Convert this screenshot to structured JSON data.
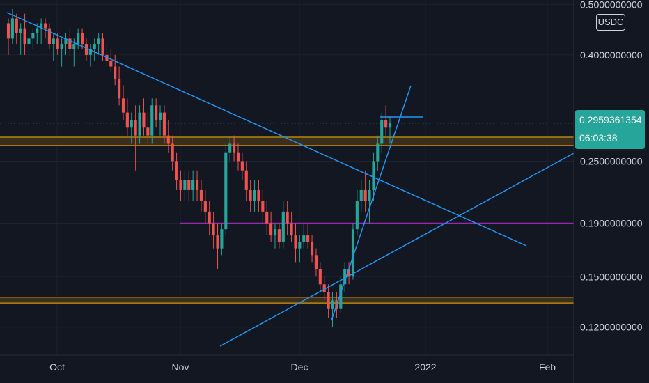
{
  "chart_data": {
    "type": "candlestick",
    "y_scale": "log",
    "ylim": [
      0.106,
      0.51
    ],
    "y_ticks": [
      "0.5000000000",
      "0.4000000000",
      "0.2500000000",
      "0.1900000000",
      "0.1500000000",
      "0.1200000000"
    ],
    "x_ticks": [
      "Oct",
      "Nov",
      "Dec",
      "2022",
      "Feb"
    ],
    "last_price": "0.2959361354",
    "countdown": "06:03:38",
    "currency": "USDC",
    "colors": {
      "background": "#131722",
      "up": "#26a69a",
      "down": "#ef5350",
      "trendline": "#2196f3",
      "zone_line": "#b8860b",
      "zone_fill": "#3a2f1e",
      "purple_line": "#9c27b0",
      "grid": "#1e222d",
      "text": "#d1d4dc",
      "dotted": "#26a69a"
    },
    "candles": [
      [
        0.46,
        0.47,
        0.4,
        0.43
      ],
      [
        0.43,
        0.49,
        0.42,
        0.47
      ],
      [
        0.47,
        0.48,
        0.42,
        0.44
      ],
      [
        0.44,
        0.46,
        0.4,
        0.45
      ],
      [
        0.45,
        0.48,
        0.4,
        0.42
      ],
      [
        0.42,
        0.44,
        0.39,
        0.43
      ],
      [
        0.43,
        0.45,
        0.41,
        0.44
      ],
      [
        0.44,
        0.46,
        0.42,
        0.45
      ],
      [
        0.45,
        0.47,
        0.42,
        0.46
      ],
      [
        0.46,
        0.47,
        0.43,
        0.45
      ],
      [
        0.45,
        0.46,
        0.41,
        0.42
      ],
      [
        0.42,
        0.44,
        0.39,
        0.43
      ],
      [
        0.43,
        0.44,
        0.4,
        0.41
      ],
      [
        0.41,
        0.43,
        0.38,
        0.42
      ],
      [
        0.42,
        0.44,
        0.4,
        0.43
      ],
      [
        0.43,
        0.45,
        0.4,
        0.41
      ],
      [
        0.41,
        0.43,
        0.38,
        0.42
      ],
      [
        0.42,
        0.45,
        0.41,
        0.44
      ],
      [
        0.44,
        0.45,
        0.41,
        0.42
      ],
      [
        0.42,
        0.43,
        0.39,
        0.4
      ],
      [
        0.4,
        0.42,
        0.38,
        0.41
      ],
      [
        0.41,
        0.43,
        0.39,
        0.42
      ],
      [
        0.42,
        0.44,
        0.4,
        0.43
      ],
      [
        0.43,
        0.44,
        0.39,
        0.4
      ],
      [
        0.4,
        0.42,
        0.38,
        0.39
      ],
      [
        0.39,
        0.41,
        0.37,
        0.38
      ],
      [
        0.38,
        0.4,
        0.35,
        0.36
      ],
      [
        0.36,
        0.38,
        0.32,
        0.33
      ],
      [
        0.33,
        0.35,
        0.3,
        0.31
      ],
      [
        0.31,
        0.33,
        0.28,
        0.29
      ],
      [
        0.29,
        0.31,
        0.27,
        0.3
      ],
      [
        0.3,
        0.32,
        0.24,
        0.28
      ],
      [
        0.28,
        0.32,
        0.27,
        0.31
      ],
      [
        0.31,
        0.33,
        0.28,
        0.29
      ],
      [
        0.29,
        0.31,
        0.27,
        0.28
      ],
      [
        0.28,
        0.33,
        0.27,
        0.32
      ],
      [
        0.32,
        0.33,
        0.29,
        0.3
      ],
      [
        0.3,
        0.32,
        0.28,
        0.31
      ],
      [
        0.31,
        0.32,
        0.27,
        0.28
      ],
      [
        0.28,
        0.3,
        0.26,
        0.27
      ],
      [
        0.27,
        0.28,
        0.24,
        0.25
      ],
      [
        0.25,
        0.26,
        0.22,
        0.23
      ],
      [
        0.23,
        0.24,
        0.21,
        0.22
      ],
      [
        0.22,
        0.24,
        0.21,
        0.23
      ],
      [
        0.23,
        0.24,
        0.21,
        0.22
      ],
      [
        0.22,
        0.24,
        0.21,
        0.23
      ],
      [
        0.23,
        0.24,
        0.21,
        0.22
      ],
      [
        0.22,
        0.23,
        0.2,
        0.21
      ],
      [
        0.21,
        0.22,
        0.19,
        0.2
      ],
      [
        0.2,
        0.21,
        0.18,
        0.19
      ],
      [
        0.19,
        0.2,
        0.17,
        0.18
      ],
      [
        0.18,
        0.19,
        0.155,
        0.17
      ],
      [
        0.17,
        0.19,
        0.165,
        0.185
      ],
      [
        0.185,
        0.27,
        0.18,
        0.26
      ],
      [
        0.26,
        0.28,
        0.25,
        0.27
      ],
      [
        0.27,
        0.28,
        0.25,
        0.26
      ],
      [
        0.26,
        0.27,
        0.24,
        0.25
      ],
      [
        0.25,
        0.26,
        0.23,
        0.24
      ],
      [
        0.24,
        0.25,
        0.21,
        0.22
      ],
      [
        0.22,
        0.23,
        0.2,
        0.21
      ],
      [
        0.21,
        0.23,
        0.2,
        0.22
      ],
      [
        0.22,
        0.23,
        0.2,
        0.21
      ],
      [
        0.21,
        0.22,
        0.19,
        0.2
      ],
      [
        0.2,
        0.21,
        0.18,
        0.19
      ],
      [
        0.19,
        0.2,
        0.175,
        0.18
      ],
      [
        0.18,
        0.19,
        0.17,
        0.185
      ],
      [
        0.185,
        0.19,
        0.17,
        0.175
      ],
      [
        0.175,
        0.21,
        0.17,
        0.2
      ],
      [
        0.2,
        0.21,
        0.18,
        0.19
      ],
      [
        0.19,
        0.2,
        0.175,
        0.18
      ],
      [
        0.18,
        0.19,
        0.16,
        0.17
      ],
      [
        0.17,
        0.18,
        0.16,
        0.175
      ],
      [
        0.175,
        0.19,
        0.17,
        0.18
      ],
      [
        0.18,
        0.19,
        0.17,
        0.175
      ],
      [
        0.175,
        0.18,
        0.16,
        0.165
      ],
      [
        0.165,
        0.17,
        0.15,
        0.155
      ],
      [
        0.155,
        0.16,
        0.14,
        0.145
      ],
      [
        0.145,
        0.15,
        0.135,
        0.14
      ],
      [
        0.14,
        0.145,
        0.125,
        0.13
      ],
      [
        0.13,
        0.14,
        0.12,
        0.135
      ],
      [
        0.135,
        0.14,
        0.125,
        0.13
      ],
      [
        0.13,
        0.15,
        0.128,
        0.145
      ],
      [
        0.145,
        0.16,
        0.14,
        0.155
      ],
      [
        0.155,
        0.16,
        0.145,
        0.15
      ],
      [
        0.15,
        0.19,
        0.148,
        0.185
      ],
      [
        0.185,
        0.22,
        0.18,
        0.21
      ],
      [
        0.21,
        0.23,
        0.2,
        0.22
      ],
      [
        0.22,
        0.24,
        0.2,
        0.21
      ],
      [
        0.21,
        0.23,
        0.19,
        0.22
      ],
      [
        0.22,
        0.26,
        0.21,
        0.25
      ],
      [
        0.25,
        0.28,
        0.24,
        0.27
      ],
      [
        0.27,
        0.31,
        0.26,
        0.3
      ],
      [
        0.3,
        0.32,
        0.28,
        0.29
      ],
      [
        0.29,
        0.305,
        0.27,
        0.296
      ]
    ]
  }
}
